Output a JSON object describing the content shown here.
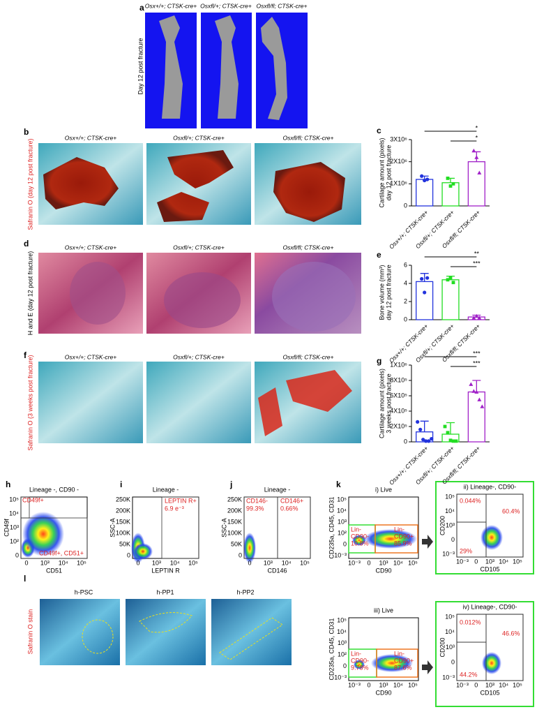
{
  "panels": {
    "a": {
      "label": "a",
      "side": "Day 12 post fracture",
      "headers": [
        "Osx+/+; CTSK-cre+",
        "Osxfl/+; CTSK-cre+",
        "Osxfl/fl; CTSK-cre+"
      ]
    },
    "b": {
      "label": "b",
      "side": "Safranin O (day 12 post fracture)",
      "headers": [
        "Osx+/+; CTSK-cre+",
        "Osxfl/+; CTSK-cre+",
        "Osxfl/fl; CTSK-cre+"
      ]
    },
    "d": {
      "label": "d",
      "side": "H and E (day 12 post fracture)",
      "headers": [
        "Osx+/+; CTSK-cre+",
        "Osxfl/+; CTSK-cre+",
        "Osxfl/fl; CTSK-cre+"
      ]
    },
    "f": {
      "label": "f",
      "side": "Safranin O (3 weeks post fracture)",
      "headers": [
        "Osx+/+; CTSK-cre+",
        "Osxfl/+; CTSK-cre+",
        "Osxfl/fl; CTSK-cre+"
      ]
    },
    "h": {
      "label": "h",
      "title": "Lineage -, CD90 -",
      "ylabel": "CD49f",
      "xlabel": "CD51",
      "yticks": [
        "10⁵",
        "10⁴",
        "10³",
        "10²",
        "0"
      ],
      "xticks": [
        "0",
        "10³",
        "10⁴",
        "10⁵"
      ],
      "gates": [
        "CD49f+",
        "CD49f+, CD51+"
      ]
    },
    "i": {
      "label": "i",
      "title": "Lineage -",
      "ylabel": "SSC-A",
      "xlabel": "LEPTIN R",
      "yticks": [
        "250K",
        "200K",
        "150K",
        "100K",
        "50K",
        "0"
      ],
      "xticks": [
        "0",
        "10³",
        "10⁴",
        "10⁵"
      ],
      "gates": [
        "LEPTIN R+",
        "6.9 e⁻³"
      ]
    },
    "j": {
      "label": "j",
      "title": "Lineage -",
      "ylabel": "SSC-A",
      "xlabel": "CD146",
      "yticks": [
        "250K",
        "200K",
        "150K",
        "100K",
        "50K",
        "0"
      ],
      "xticks": [
        "0",
        "10³",
        "10⁴",
        "10⁵"
      ],
      "gates": [
        "CD146-",
        "99.3%",
        "CD146+",
        "0.66%"
      ]
    },
    "k": {
      "label": "k",
      "i": {
        "title": "i)   Live",
        "ylabel": "CD235a, CD45, CD31",
        "xlabel": "CD90",
        "yticks": [
          "10⁵",
          "10⁴",
          "10³",
          "10²",
          "0",
          "10⁻³"
        ],
        "xticks": [
          "10⁻³",
          "0",
          "10³",
          "10⁴",
          "10⁵"
        ],
        "gates": [
          "Lin-",
          "CD90-",
          "10.8%",
          "Lin-",
          "CD90+",
          "85.9%"
        ]
      },
      "ii": {
        "title": "ii)   Lineage-, CD90-",
        "ylabel": "CD200",
        "xlabel": "CD105",
        "yticks": [
          "10⁵",
          "10⁴",
          "10³",
          "0",
          "10⁻³"
        ],
        "xticks": [
          "10⁻³",
          "0",
          "10³",
          "10⁴",
          "10⁵"
        ],
        "gates": [
          "0.044%",
          "60.4%",
          "29%"
        ]
      },
      "iii": {
        "title": "iii)   Live",
        "ylabel": "CD235a, CD45, CD31",
        "xlabel": "CD90",
        "yticks": [
          "10⁵",
          "10⁴",
          "10³",
          "10²",
          "0",
          "10⁻³"
        ],
        "xticks": [
          "10⁻³",
          "0",
          "10³",
          "10⁴",
          "10⁵"
        ],
        "gates": [
          "Lin-",
          "CD90-",
          "9.78%",
          "Lin-",
          "CD90+",
          "87.6%"
        ]
      },
      "iv": {
        "title": "iv)   Lineage-, CD90-",
        "ylabel": "CD200",
        "xlabel": "CD105",
        "yticks": [
          "10⁵",
          "10⁴",
          "10³",
          "0",
          "10⁻³"
        ],
        "xticks": [
          "10⁻³",
          "0",
          "10³",
          "10⁴",
          "10⁵"
        ],
        "gates": [
          "0.012%",
          "46.6%",
          "44.2%"
        ]
      }
    },
    "l": {
      "label": "l",
      "side": "Safranin O stain",
      "headers": [
        "h-PSC",
        "h-PP1",
        "h-PP2"
      ]
    }
  },
  "chart_data": [
    {
      "type": "bar",
      "label": "c",
      "ylabel": [
        "Cartilage amount (pixels)",
        "day 12 post fracture"
      ],
      "categories": [
        "Osx+/+; CTSK-cre+",
        "Osxfl/+; CTSK-cre+",
        "Osxfl/fl; CTSK-cre+"
      ],
      "colors": [
        "#2233dd",
        "#22dd22",
        "#a020c8"
      ],
      "values": [
        1200000,
        1050000,
        2000000
      ],
      "errors": [
        150000,
        200000,
        450000
      ],
      "points": [
        [
          1350000,
          1150000,
          1200000
        ],
        [
          1250000,
          900000,
          1000000
        ],
        [
          2500000,
          2200000,
          1500000
        ]
      ],
      "ylim": [
        0,
        3000000
      ],
      "yticks": [
        0,
        {
          "value": 1000000,
          "label": "1X10⁶"
        },
        {
          "value": 2000000,
          "label": "2X10⁶"
        },
        {
          "value": 3000000,
          "label": "3X10⁶"
        }
      ],
      "stars": [
        "*",
        "*"
      ]
    },
    {
      "type": "bar",
      "label": "e",
      "ylabel": [
        "Bone volume  (mm³)",
        "day 12 post fracture"
      ],
      "categories": [
        "Osx+/+; CTSK-cre+",
        "Osxfl/+; CTSK-cre+",
        "Osxfl/fl; CTSK-cre+"
      ],
      "colors": [
        "#2233dd",
        "#22dd22",
        "#a020c8"
      ],
      "values": [
        4.2,
        4.4,
        0.3
      ],
      "errors": [
        0.9,
        0.4,
        0.2
      ],
      "points": [
        [
          4.5,
          3.0,
          4.6
        ],
        [
          4.4,
          4.6,
          4.1
        ],
        [
          0.2,
          0.4,
          0.2
        ]
      ],
      "ylim": [
        0,
        6
      ],
      "yticks": [
        0,
        2,
        4,
        6
      ],
      "stars": [
        "**",
        "***"
      ]
    },
    {
      "type": "bar",
      "label": "g",
      "ylabel": [
        "Cartilage amount (pixels)",
        "3 weeks post fracture"
      ],
      "categories": [
        "Osx+/+; CTSK-cre+",
        "Osxfl/+; CTSK-cre+",
        "Osxfl/fl; CTSK-cre+"
      ],
      "colors": [
        "#2233dd",
        "#22dd22",
        "#a020c8"
      ],
      "values": [
        130000,
        100000,
        650000
      ],
      "errors": [
        140000,
        150000,
        150000
      ],
      "points": [
        [
          260000,
          160000,
          30000,
          10000,
          10000,
          40000
        ],
        [
          200000,
          120000,
          20000,
          10000,
          10000
        ],
        [
          750000,
          660000,
          650000,
          550000,
          460000
        ]
      ],
      "ylim": [
        0,
        1000000
      ],
      "yticks": [
        0,
        {
          "value": 200000,
          "label": "2X10⁵"
        },
        {
          "value": 400000,
          "label": "4X10⁵"
        },
        {
          "value": 600000,
          "label": "6X10⁵"
        },
        {
          "value": 800000,
          "label": "8X10⁵"
        },
        {
          "value": 1000000,
          "label": "1X10⁶"
        }
      ],
      "stars": [
        "***",
        "***"
      ]
    }
  ]
}
